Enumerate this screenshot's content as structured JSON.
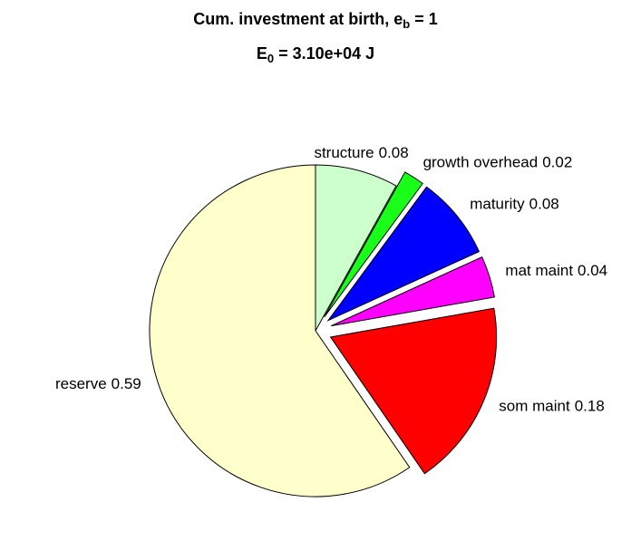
{
  "chart_data": {
    "type": "pie",
    "title": [
      "Cum. investment at birth, e",
      "b",
      " = 1"
    ],
    "subtitle": [
      "E",
      "0",
      " = 3.10e+04 J"
    ],
    "categories": [
      "structure",
      "growth overhead",
      "maturity",
      "mat maint",
      "som maint",
      "reserve"
    ],
    "values": [
      0.08,
      0.02,
      0.08,
      0.04,
      0.18,
      0.59
    ],
    "colors": [
      "#ccffcc",
      "#1aff1a",
      "#0000ff",
      "#ff00ff",
      "#ff0000",
      "#ffffcc"
    ],
    "explode": [
      false,
      true,
      true,
      true,
      true,
      false
    ]
  }
}
